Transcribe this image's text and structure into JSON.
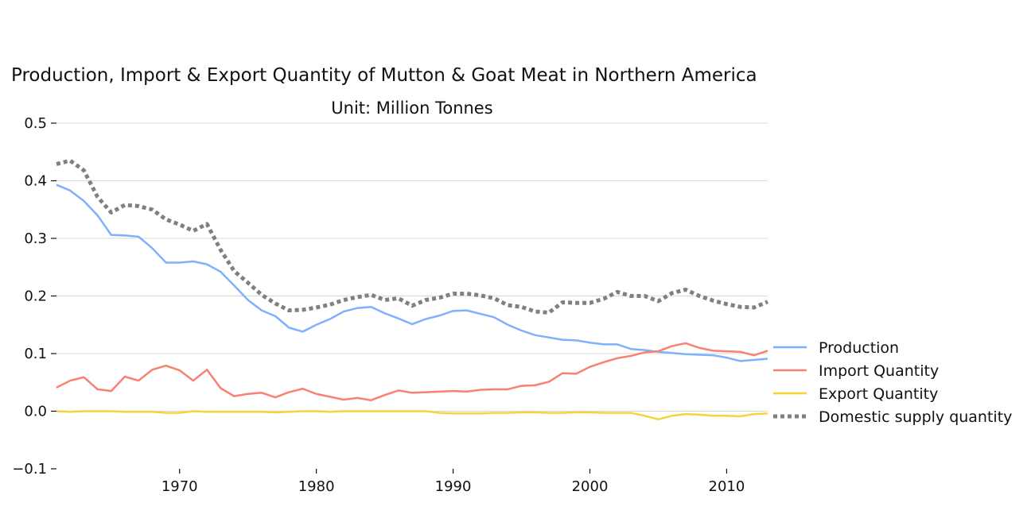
{
  "chart_data": {
    "type": "line",
    "title": "Production, Import & Export Quantity of Mutton & Goat Meat in Northern America",
    "subtitle": "Unit: Million Tonnes",
    "xlabel": "",
    "ylabel": "",
    "xlim": [
      1961,
      2013
    ],
    "ylim": [
      -0.1,
      0.5
    ],
    "yticks": [
      -0.1,
      0.0,
      0.1,
      0.2,
      0.3,
      0.4,
      0.5
    ],
    "ytick_labels": [
      "−0.1",
      "0.0",
      "0.1",
      "0.2",
      "0.3",
      "0.4",
      "0.5"
    ],
    "xticks": [
      1970,
      1980,
      1990,
      2000,
      2010
    ],
    "xtick_labels": [
      "1970",
      "1980",
      "1990",
      "2000",
      "2010"
    ],
    "grid": "horizontal",
    "legend_position": "right",
    "x": [
      1961,
      1962,
      1963,
      1964,
      1965,
      1966,
      1967,
      1968,
      1969,
      1970,
      1971,
      1972,
      1973,
      1974,
      1975,
      1976,
      1977,
      1978,
      1979,
      1980,
      1981,
      1982,
      1983,
      1984,
      1985,
      1986,
      1987,
      1988,
      1989,
      1990,
      1991,
      1992,
      1993,
      1994,
      1995,
      1996,
      1997,
      1998,
      1999,
      2000,
      2001,
      2002,
      2003,
      2004,
      2005,
      2006,
      2007,
      2008,
      2009,
      2010,
      2011,
      2012,
      2013
    ],
    "series": [
      {
        "name": "Production",
        "color": "#7fb0ff",
        "style": "solid",
        "values": [
          0.393,
          0.383,
          0.365,
          0.34,
          0.306,
          0.305,
          0.303,
          0.283,
          0.258,
          0.258,
          0.26,
          0.255,
          0.242,
          0.218,
          0.193,
          0.175,
          0.165,
          0.145,
          0.138,
          0.15,
          0.16,
          0.173,
          0.179,
          0.181,
          0.17,
          0.161,
          0.151,
          0.16,
          0.166,
          0.174,
          0.175,
          0.169,
          0.163,
          0.15,
          0.14,
          0.132,
          0.128,
          0.124,
          0.123,
          0.119,
          0.116,
          0.116,
          0.108,
          0.106,
          0.103,
          0.101,
          0.099,
          0.098,
          0.097,
          0.093,
          0.087,
          0.089,
          0.091
        ]
      },
      {
        "name": "Import Quantity",
        "color": "#fa8072",
        "style": "solid",
        "values": [
          0.041,
          0.053,
          0.059,
          0.038,
          0.035,
          0.06,
          0.053,
          0.072,
          0.079,
          0.071,
          0.053,
          0.072,
          0.04,
          0.026,
          0.03,
          0.032,
          0.024,
          0.033,
          0.039,
          0.03,
          0.025,
          0.02,
          0.023,
          0.019,
          0.028,
          0.036,
          0.032,
          0.033,
          0.034,
          0.035,
          0.034,
          0.037,
          0.038,
          0.038,
          0.044,
          0.045,
          0.051,
          0.066,
          0.065,
          0.077,
          0.085,
          0.092,
          0.096,
          0.102,
          0.104,
          0.113,
          0.118,
          0.11,
          0.105,
          0.104,
          0.103,
          0.097,
          0.105
        ]
      },
      {
        "name": "Export Quantity",
        "color": "#f7d43c",
        "style": "solid",
        "values": [
          0.0,
          -0.001,
          0.0,
          0.0,
          0.0,
          -0.001,
          -0.001,
          -0.001,
          -0.003,
          -0.003,
          0.0,
          -0.001,
          -0.001,
          -0.001,
          -0.001,
          -0.001,
          -0.002,
          -0.001,
          0.0,
          0.0,
          -0.001,
          0.0,
          0.0,
          0.0,
          0.0,
          0.0,
          0.0,
          0.0,
          -0.003,
          -0.004,
          -0.004,
          -0.004,
          -0.003,
          -0.003,
          -0.002,
          -0.002,
          -0.003,
          -0.003,
          -0.002,
          -0.002,
          -0.003,
          -0.003,
          -0.003,
          -0.008,
          -0.014,
          -0.008,
          -0.005,
          -0.006,
          -0.008,
          -0.008,
          -0.009,
          -0.005,
          -0.004
        ]
      },
      {
        "name": "Domestic supply quantity",
        "color": "#808080",
        "style": "dotted",
        "values": [
          0.429,
          0.435,
          0.418,
          0.372,
          0.345,
          0.358,
          0.356,
          0.35,
          0.333,
          0.324,
          0.313,
          0.325,
          0.28,
          0.243,
          0.223,
          0.202,
          0.187,
          0.175,
          0.176,
          0.18,
          0.185,
          0.193,
          0.198,
          0.202,
          0.193,
          0.196,
          0.183,
          0.193,
          0.197,
          0.204,
          0.204,
          0.201,
          0.196,
          0.184,
          0.181,
          0.173,
          0.171,
          0.189,
          0.188,
          0.188,
          0.195,
          0.207,
          0.2,
          0.2,
          0.191,
          0.205,
          0.211,
          0.2,
          0.192,
          0.186,
          0.181,
          0.18,
          0.19
        ]
      }
    ]
  }
}
